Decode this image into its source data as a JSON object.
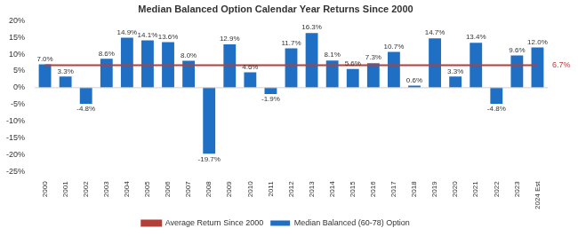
{
  "chart_data": {
    "type": "bar",
    "title": "Median Balanced Option Calendar Year Returns Since 2000",
    "categories": [
      "2000",
      "2001",
      "2002",
      "2003",
      "2004",
      "2005",
      "2006",
      "2007",
      "2008",
      "2009",
      "2010",
      "2011",
      "2012",
      "2013",
      "2014",
      "2015",
      "2016",
      "2017",
      "2018",
      "2019",
      "2020",
      "2021",
      "2022",
      "2023",
      "2024 Est"
    ],
    "series": [
      {
        "name": "Median Balanced (60-78) Option",
        "type": "bar",
        "color": "#1f6fc4",
        "values": [
          7.0,
          3.3,
          -4.8,
          8.6,
          14.9,
          14.1,
          13.6,
          8.0,
          -19.7,
          12.9,
          4.6,
          -1.9,
          11.7,
          16.3,
          8.1,
          5.6,
          7.3,
          10.7,
          0.6,
          14.7,
          3.3,
          13.4,
          -4.8,
          9.6,
          12.0
        ],
        "value_labels": [
          "7.0%",
          "3.3%",
          "-4.8%",
          "8.6%",
          "14.9%",
          "14.1%",
          "13.6%",
          "8.0%",
          "-19.7%",
          "12.9%",
          "4.6%",
          "-1.9%",
          "11.7%",
          "16.3%",
          "8.1%",
          "5.6%",
          "7.3%",
          "10.7%",
          "0.6%",
          "14.7%",
          "3.3%",
          "13.4%",
          "-4.8%",
          "9.6%",
          "12.0%"
        ]
      },
      {
        "name": "Average Return Since 2000",
        "type": "line",
        "color": "#b2403a",
        "values": [
          6.7,
          6.7,
          6.7,
          6.7,
          6.7,
          6.7,
          6.7,
          6.7,
          6.7,
          6.7,
          6.7,
          6.7,
          6.7,
          6.7,
          6.7,
          6.7,
          6.7,
          6.7,
          6.7,
          6.7,
          6.7,
          6.7,
          6.7,
          6.7,
          6.7
        ]
      }
    ],
    "annotations": [
      {
        "text": "6.7%",
        "value": 6.7
      }
    ],
    "ylim": [
      -25,
      20
    ],
    "yticks": [
      {
        "value": -25,
        "label": "-25%"
      },
      {
        "value": -20,
        "label": "-20%"
      },
      {
        "value": -15,
        "label": "-15%"
      },
      {
        "value": -10,
        "label": "-10%"
      },
      {
        "value": -5,
        "label": "-5%"
      },
      {
        "value": 0,
        "label": "0%"
      },
      {
        "value": 5,
        "label": "5%"
      },
      {
        "value": 10,
        "label": "10%"
      },
      {
        "value": 15,
        "label": "15%"
      },
      {
        "value": 20,
        "label": "20%"
      }
    ],
    "grid": false,
    "legend": "bottom",
    "data_labels": true
  }
}
